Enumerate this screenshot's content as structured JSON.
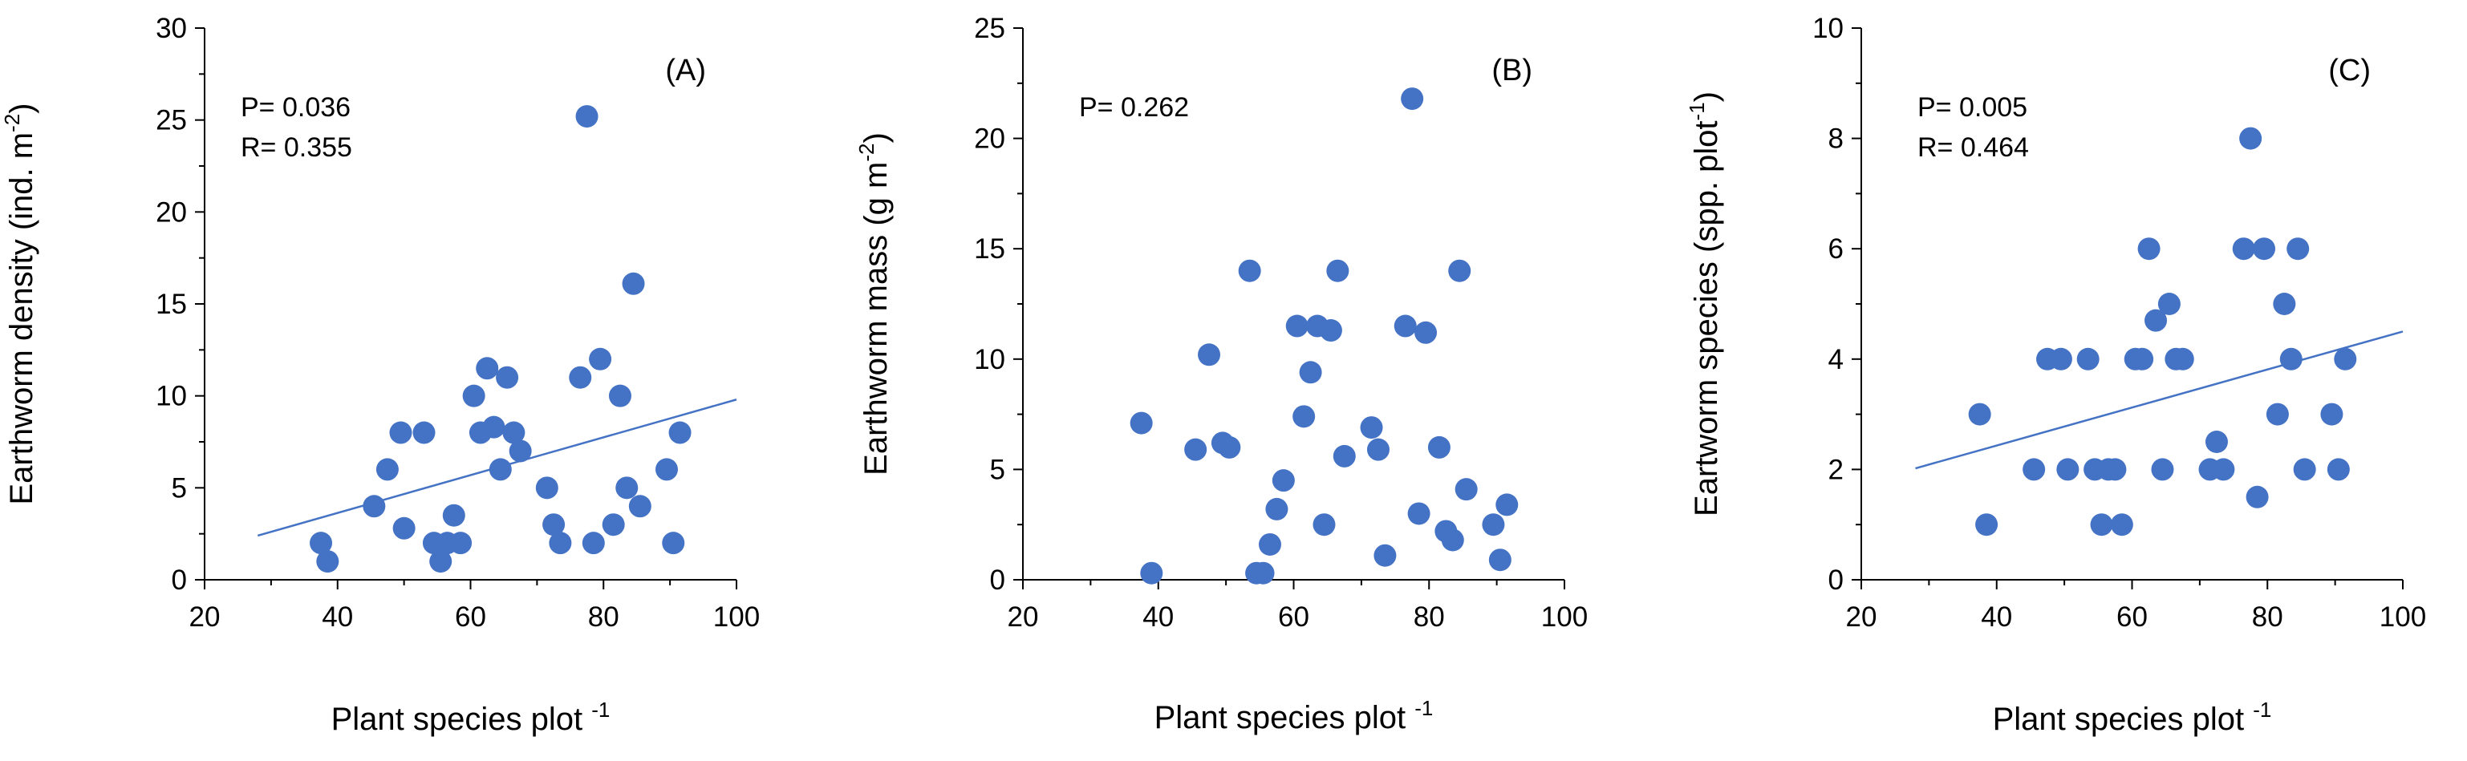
{
  "chart_data": [
    {
      "type": "scatter",
      "panel_label": "(A)",
      "xlabel": "Plant species plot",
      "xlabel_sup": "-1",
      "ylabel": "Earthworm density (ind. m",
      "ylabel_sup": "-2",
      "ylabel_close": ")",
      "xlim": [
        20,
        100
      ],
      "ylim": [
        0,
        30
      ],
      "xticks": [
        20,
        40,
        60,
        80,
        100
      ],
      "yticks": [
        0,
        5,
        10,
        15,
        20,
        25,
        30
      ],
      "stats": [
        "P= 0.036",
        "R= 0.355"
      ],
      "trendline": {
        "x": [
          28,
          100
        ],
        "y": [
          2.4,
          9.8
        ]
      },
      "points": [
        [
          37.5,
          2
        ],
        [
          38.5,
          1
        ],
        [
          45.5,
          4
        ],
        [
          47.5,
          6
        ],
        [
          49.5,
          8
        ],
        [
          50,
          2.8
        ],
        [
          53,
          8
        ],
        [
          54.5,
          2
        ],
        [
          55.5,
          1
        ],
        [
          56.5,
          2
        ],
        [
          57.5,
          3.5
        ],
        [
          58.5,
          2
        ],
        [
          60.5,
          10
        ],
        [
          61.5,
          8
        ],
        [
          62.5,
          11.5
        ],
        [
          63.5,
          8.3
        ],
        [
          64.5,
          6
        ],
        [
          65.5,
          11
        ],
        [
          66.5,
          8
        ],
        [
          67.5,
          7
        ],
        [
          71.5,
          5
        ],
        [
          72.5,
          3
        ],
        [
          73.5,
          2
        ],
        [
          76.5,
          11
        ],
        [
          77.5,
          25.2
        ],
        [
          78.5,
          2
        ],
        [
          79.5,
          12
        ],
        [
          81.5,
          3
        ],
        [
          82.5,
          10
        ],
        [
          83.5,
          5
        ],
        [
          84.5,
          16.1
        ],
        [
          85.5,
          4
        ],
        [
          89.5,
          6
        ],
        [
          90.5,
          2
        ],
        [
          91.5,
          8
        ]
      ]
    },
    {
      "type": "scatter",
      "panel_label": "(B)",
      "xlabel": "Plant species plot",
      "xlabel_sup": "-1",
      "ylabel": "Earthworm mass (g m",
      "ylabel_sup": "-2",
      "ylabel_close": ")",
      "xlim": [
        20,
        100
      ],
      "ylim": [
        0,
        25
      ],
      "xticks": [
        20,
        40,
        60,
        80,
        100
      ],
      "yticks": [
        0,
        5,
        10,
        15,
        20,
        25
      ],
      "stats": [
        "P= 0.262"
      ],
      "points": [
        [
          37.5,
          7.1
        ],
        [
          39,
          0.3
        ],
        [
          45.5,
          5.9
        ],
        [
          47.5,
          10.2
        ],
        [
          49.5,
          6.2
        ],
        [
          50.5,
          6
        ],
        [
          53.5,
          14
        ],
        [
          54.5,
          0.3
        ],
        [
          55.5,
          0.3
        ],
        [
          56.5,
          1.6
        ],
        [
          57.5,
          3.2
        ],
        [
          58.5,
          4.5
        ],
        [
          60.5,
          11.5
        ],
        [
          61.5,
          7.4
        ],
        [
          62.5,
          9.4
        ],
        [
          63.5,
          11.5
        ],
        [
          64.5,
          2.5
        ],
        [
          65.5,
          11.3
        ],
        [
          66.5,
          14
        ],
        [
          67.5,
          5.6
        ],
        [
          71.5,
          6.9
        ],
        [
          72.5,
          5.9
        ],
        [
          73.5,
          1.1
        ],
        [
          76.5,
          11.5
        ],
        [
          77.5,
          21.8
        ],
        [
          78.5,
          3
        ],
        [
          79.5,
          11.2
        ],
        [
          81.5,
          6
        ],
        [
          82.5,
          2.2
        ],
        [
          83.5,
          1.8
        ],
        [
          84.5,
          14
        ],
        [
          85.5,
          4.1
        ],
        [
          89.5,
          2.5
        ],
        [
          90.5,
          0.9
        ],
        [
          91.5,
          3.4
        ]
      ]
    },
    {
      "type": "scatter",
      "panel_label": "(C)",
      "xlabel": "Plant species plot",
      "xlabel_sup": "-1",
      "ylabel": "Eartworm species (spp. plot",
      "ylabel_sup": "-1",
      "ylabel_close": ")",
      "xlim": [
        20,
        100
      ],
      "ylim": [
        0,
        10
      ],
      "xticks": [
        20,
        40,
        60,
        80,
        100
      ],
      "yticks": [
        0,
        2,
        4,
        6,
        8,
        10
      ],
      "stats": [
        "P= 0.005",
        "R= 0.464"
      ],
      "trendline": {
        "x": [
          28,
          100
        ],
        "y": [
          2.02,
          4.5
        ]
      },
      "points": [
        [
          37.5,
          3
        ],
        [
          38.5,
          1
        ],
        [
          45.5,
          2
        ],
        [
          47.5,
          4
        ],
        [
          49.5,
          4
        ],
        [
          50.5,
          2
        ],
        [
          53.5,
          4
        ],
        [
          54.5,
          2
        ],
        [
          55.5,
          1
        ],
        [
          56.5,
          2
        ],
        [
          57.5,
          2
        ],
        [
          58.5,
          1
        ],
        [
          60.5,
          4
        ],
        [
          61.5,
          4
        ],
        [
          62.5,
          6
        ],
        [
          63.5,
          4.7
        ],
        [
          64.5,
          2
        ],
        [
          65.5,
          5
        ],
        [
          66.5,
          4
        ],
        [
          67.5,
          4
        ],
        [
          71.5,
          2
        ],
        [
          72.5,
          2.5
        ],
        [
          73.5,
          2
        ],
        [
          76.5,
          6
        ],
        [
          77.5,
          8
        ],
        [
          78.5,
          1.5
        ],
        [
          79.5,
          6
        ],
        [
          81.5,
          3
        ],
        [
          82.5,
          5
        ],
        [
          83.5,
          4
        ],
        [
          84.5,
          6
        ],
        [
          85.5,
          2
        ],
        [
          89.5,
          3
        ],
        [
          90.5,
          2
        ],
        [
          91.5,
          4
        ]
      ]
    }
  ]
}
